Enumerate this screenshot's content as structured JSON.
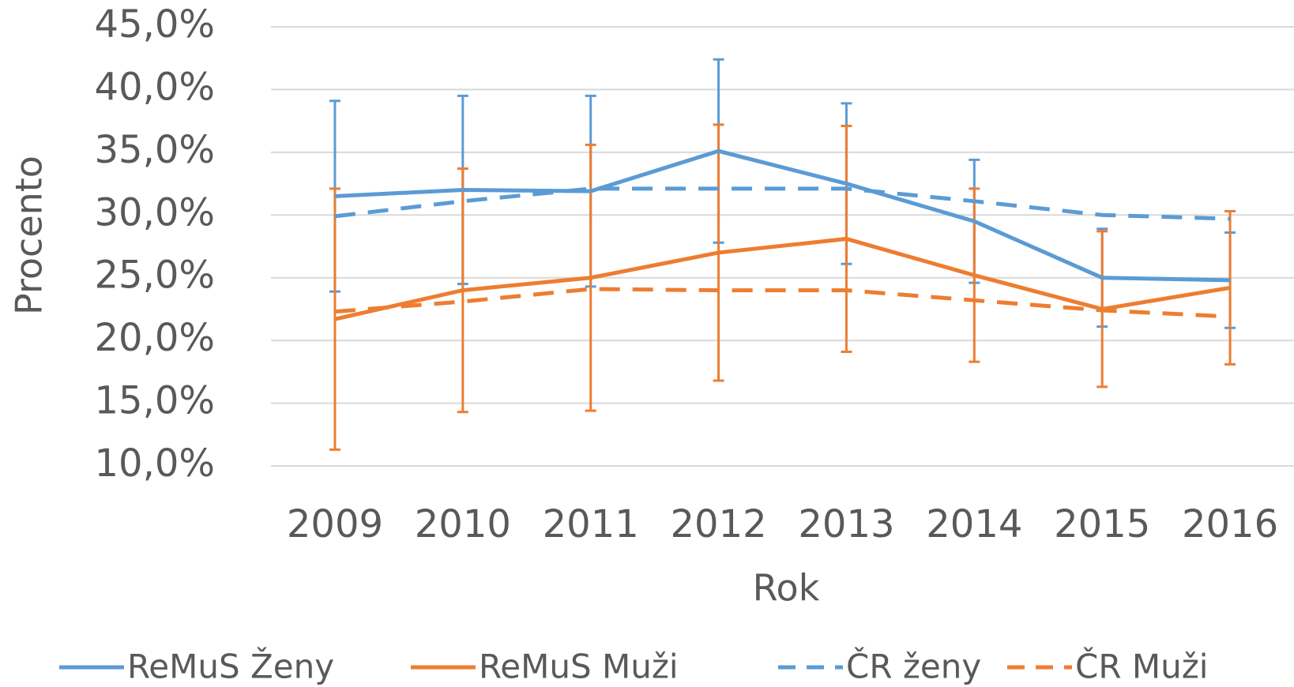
{
  "chart_data": {
    "type": "line",
    "y_label": "Procento",
    "x_label": "Rok",
    "categories": [
      "2009",
      "2010",
      "2011",
      "2012",
      "2013",
      "2014",
      "2015",
      "2016"
    ],
    "series": [
      {
        "name": "ReMuS Ženy",
        "color": "#5b9bd5",
        "dashed": false,
        "values": [
          31.5,
          32.0,
          31.9,
          35.1,
          32.5,
          29.5,
          25.0,
          24.8
        ],
        "errors": [
          7.6,
          7.5,
          7.6,
          7.3,
          6.4,
          4.9,
          3.9,
          3.8
        ]
      },
      {
        "name": "ReMuS Muži",
        "color": "#ed7d31",
        "dashed": false,
        "values": [
          21.7,
          24.0,
          25.0,
          27.0,
          28.1,
          25.2,
          22.5,
          24.2
        ],
        "errors": [
          10.4,
          9.7,
          10.6,
          10.2,
          9.0,
          6.9,
          6.2,
          6.1
        ]
      },
      {
        "name": "ČR ženy",
        "color": "#5b9bd5",
        "dashed": true,
        "values": [
          29.9,
          31.1,
          32.1,
          32.1,
          32.1,
          31.1,
          30.0,
          29.7
        ]
      },
      {
        "name": "ČR Muži",
        "color": "#ed7d31",
        "dashed": true,
        "values": [
          22.3,
          23.1,
          24.1,
          24.0,
          24.0,
          23.2,
          22.4,
          21.9
        ]
      }
    ],
    "ylim": [
      10,
      45
    ],
    "yticks": [
      {
        "value": 10,
        "label": "10,0%"
      },
      {
        "value": 15,
        "label": "15,0%"
      },
      {
        "value": 20,
        "label": "20,0%"
      },
      {
        "value": 25,
        "label": "25,0%"
      },
      {
        "value": 30,
        "label": "30,0%"
      },
      {
        "value": 35,
        "label": "35,0%"
      },
      {
        "value": 40,
        "label": "40,0%"
      },
      {
        "value": 45,
        "label": "45,0%"
      }
    ],
    "grid": true,
    "legend": "bottom"
  }
}
